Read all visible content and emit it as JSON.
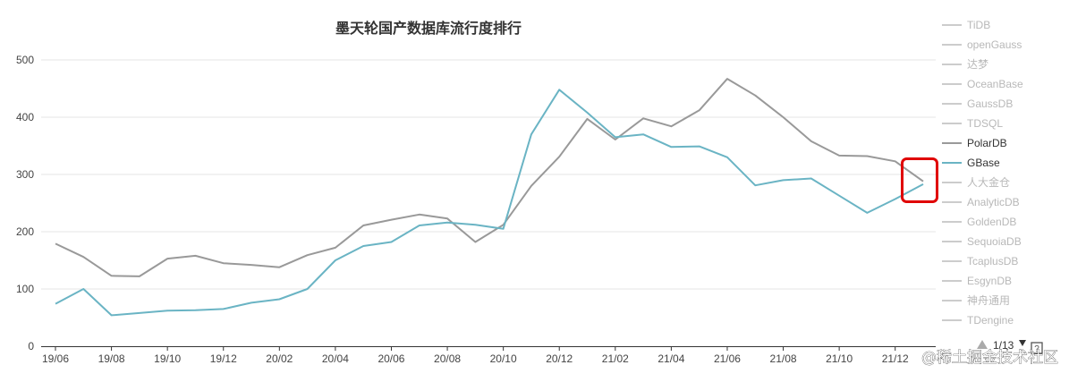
{
  "chart_data": {
    "type": "line",
    "title": "墨天轮国产数据库流行度排行",
    "x": [
      "19/06",
      "19/07",
      "19/08",
      "19/09",
      "19/10",
      "19/11",
      "19/12",
      "20/01",
      "20/02",
      "20/03",
      "20/04",
      "20/05",
      "20/06",
      "20/07",
      "20/08",
      "20/09",
      "20/10",
      "20/11",
      "20/12",
      "21/01",
      "21/02",
      "21/03",
      "21/04",
      "21/05",
      "21/06",
      "21/07",
      "21/08",
      "21/09",
      "21/10",
      "21/11",
      "21/12",
      "22/01"
    ],
    "x_tick_labels": [
      "19/06",
      "19/08",
      "19/10",
      "19/12",
      "20/02",
      "20/04",
      "20/06",
      "20/08",
      "20/10",
      "20/12",
      "21/02",
      "21/04",
      "21/06",
      "21/08",
      "21/10",
      "21/12"
    ],
    "ylim": [
      0,
      500
    ],
    "y_ticks": [
      "0",
      "100",
      "200",
      "300",
      "400",
      "500"
    ],
    "grid": "horizontal",
    "series": [
      {
        "name": "PolarDB",
        "color": "#999999",
        "values": [
          179,
          156,
          123,
          122,
          153,
          158,
          145,
          142,
          138,
          159,
          172,
          211,
          221,
          230,
          223,
          182,
          212,
          280,
          331,
          397,
          361,
          398,
          384,
          412,
          467,
          438,
          400,
          358,
          333,
          332,
          323,
          288
        ]
      },
      {
        "name": "GBase",
        "color": "#6ab4c4",
        "values": [
          74,
          100,
          54,
          58,
          62,
          63,
          65,
          76,
          82,
          100,
          150,
          175,
          182,
          211,
          216,
          212,
          205,
          370,
          448,
          408,
          365,
          370,
          348,
          349,
          330,
          281,
          290,
          293,
          263,
          233,
          257,
          283
        ]
      }
    ],
    "legend": {
      "position": "right",
      "items": [
        {
          "name": "TiDB",
          "active": false
        },
        {
          "name": "openGauss",
          "active": false
        },
        {
          "name": "达梦",
          "active": false
        },
        {
          "name": "OceanBase",
          "active": false
        },
        {
          "name": "GaussDB",
          "active": false
        },
        {
          "name": "TDSQL",
          "active": false
        },
        {
          "name": "PolarDB",
          "active": true,
          "color": "#999999"
        },
        {
          "name": "GBase",
          "active": true,
          "color": "#6ab4c4"
        },
        {
          "name": "人大金仓",
          "active": false
        },
        {
          "name": "AnalyticDB",
          "active": false
        },
        {
          "name": "GoldenDB",
          "active": false
        },
        {
          "name": "SequoiaDB",
          "active": false
        },
        {
          "name": "TcaplusDB",
          "active": false
        },
        {
          "name": "EsgynDB",
          "active": false
        },
        {
          "name": "神舟通用",
          "active": false
        },
        {
          "name": "TDengine",
          "active": false
        }
      ],
      "inactive_color": "#cccccc",
      "pager": "1/13"
    },
    "highlight_box": {
      "color": "#e00000"
    }
  },
  "watermark": "@稀土掘金技术社区"
}
